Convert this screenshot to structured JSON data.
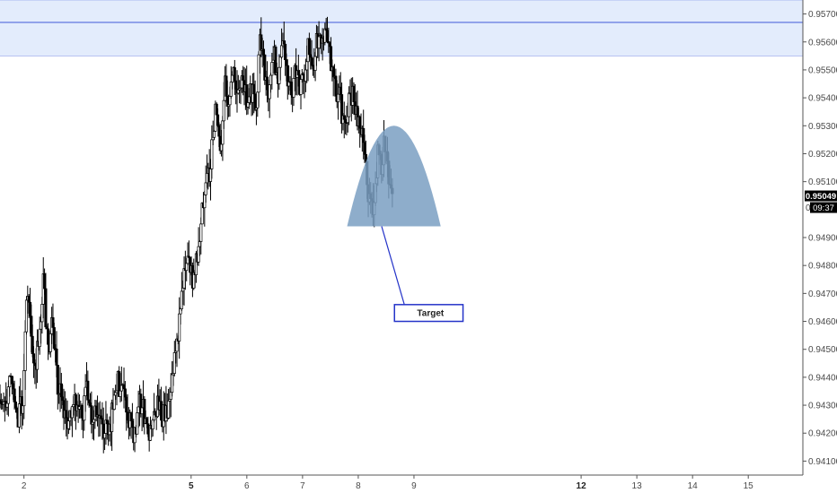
{
  "chart_data": {
    "type": "candlestick",
    "y_range": [
      0.9405,
      0.9575
    ],
    "x_range": [
      1.57,
      15.98
    ],
    "y_ticks": [
      {
        "value": 0.957,
        "label": "0.95700"
      },
      {
        "value": 0.956,
        "label": "0.95600"
      },
      {
        "value": 0.955,
        "label": "0.95500"
      },
      {
        "value": 0.954,
        "label": "0.95400"
      },
      {
        "value": 0.953,
        "label": "0.95300"
      },
      {
        "value": 0.952,
        "label": "0.95200"
      },
      {
        "value": 0.951,
        "label": "0.95100"
      },
      {
        "value": 0.949,
        "label": "0.94900"
      },
      {
        "value": 0.948,
        "label": "0.94800"
      },
      {
        "value": 0.947,
        "label": "0.94700"
      },
      {
        "value": 0.946,
        "label": "0.94600"
      },
      {
        "value": 0.945,
        "label": "0.94500"
      },
      {
        "value": 0.944,
        "label": "0.94400"
      },
      {
        "value": 0.943,
        "label": "0.94300"
      },
      {
        "value": 0.942,
        "label": "0.94200"
      },
      {
        "value": 0.941,
        "label": "0.94100"
      }
    ],
    "x_ticks": [
      {
        "value": 2,
        "label": "2",
        "bold": false
      },
      {
        "value": 5,
        "label": "5",
        "bold": true
      },
      {
        "value": 6,
        "label": "6",
        "bold": false
      },
      {
        "value": 7,
        "label": "7",
        "bold": false
      },
      {
        "value": 8,
        "label": "8",
        "bold": false
      },
      {
        "value": 9,
        "label": "9",
        "bold": false
      },
      {
        "value": 12,
        "label": "12",
        "bold": true
      },
      {
        "value": 13,
        "label": "13",
        "bold": false
      },
      {
        "value": 14,
        "label": "14",
        "bold": false
      },
      {
        "value": 15,
        "label": "15",
        "bold": false
      }
    ],
    "price_path": [
      [
        1.57,
        0.9432
      ],
      [
        1.68,
        0.9428
      ],
      [
        1.78,
        0.9438
      ],
      [
        1.9,
        0.9424
      ],
      [
        2.0,
        0.9432
      ],
      [
        2.07,
        0.947
      ],
      [
        2.14,
        0.946
      ],
      [
        2.22,
        0.9442
      ],
      [
        2.3,
        0.9455
      ],
      [
        2.37,
        0.9475
      ],
      [
        2.45,
        0.9448
      ],
      [
        2.53,
        0.946
      ],
      [
        2.62,
        0.9438
      ],
      [
        2.72,
        0.943
      ],
      [
        2.82,
        0.9422
      ],
      [
        2.95,
        0.9432
      ],
      [
        3.05,
        0.9425
      ],
      [
        3.15,
        0.9436
      ],
      [
        3.25,
        0.9425
      ],
      [
        3.35,
        0.943
      ],
      [
        3.45,
        0.942
      ],
      [
        3.58,
        0.9424
      ],
      [
        3.7,
        0.9438
      ],
      [
        3.8,
        0.9433
      ],
      [
        3.9,
        0.9426
      ],
      [
        4.0,
        0.942
      ],
      [
        4.1,
        0.9432
      ],
      [
        4.2,
        0.9427
      ],
      [
        4.3,
        0.9418
      ],
      [
        4.42,
        0.943
      ],
      [
        4.55,
        0.9425
      ],
      [
        4.65,
        0.9436
      ],
      [
        4.75,
        0.9448
      ],
      [
        4.85,
        0.947
      ],
      [
        4.95,
        0.9482
      ],
      [
        5.05,
        0.9475
      ],
      [
        5.15,
        0.9486
      ],
      [
        5.25,
        0.9506
      ],
      [
        5.35,
        0.9512
      ],
      [
        5.45,
        0.9535
      ],
      [
        5.55,
        0.952
      ],
      [
        5.62,
        0.9545
      ],
      [
        5.7,
        0.9538
      ],
      [
        5.78,
        0.955
      ],
      [
        5.86,
        0.954
      ],
      [
        5.94,
        0.9548
      ],
      [
        6.02,
        0.9538
      ],
      [
        6.1,
        0.9543
      ],
      [
        6.18,
        0.9536
      ],
      [
        6.26,
        0.956
      ],
      [
        6.34,
        0.955
      ],
      [
        6.42,
        0.954
      ],
      [
        6.5,
        0.9556
      ],
      [
        6.58,
        0.9545
      ],
      [
        6.66,
        0.9562
      ],
      [
        6.74,
        0.9548
      ],
      [
        6.82,
        0.954
      ],
      [
        6.9,
        0.9552
      ],
      [
        6.98,
        0.9542
      ],
      [
        7.06,
        0.955
      ],
      [
        7.14,
        0.956
      ],
      [
        7.22,
        0.9552
      ],
      [
        7.3,
        0.9562
      ],
      [
        7.38,
        0.956
      ],
      [
        7.46,
        0.9565
      ],
      [
        7.52,
        0.9555
      ],
      [
        7.6,
        0.9545
      ],
      [
        7.68,
        0.954
      ],
      [
        7.76,
        0.953
      ],
      [
        7.84,
        0.9538
      ],
      [
        7.92,
        0.9542
      ],
      [
        8.0,
        0.9532
      ],
      [
        8.08,
        0.9528
      ],
      [
        8.14,
        0.952
      ],
      [
        8.2,
        0.9505
      ],
      [
        8.26,
        0.9498
      ],
      [
        8.32,
        0.9508
      ],
      [
        8.38,
        0.952
      ],
      [
        8.44,
        0.9515
      ],
      [
        8.5,
        0.9525
      ],
      [
        8.56,
        0.9512
      ],
      [
        8.62,
        0.9505
      ]
    ],
    "resistance_zone": {
      "from": 0.9555,
      "to": 0.9577
    },
    "resistance_line": 0.9567,
    "current_price": {
      "value": 0.95049,
      "label": "0.95049",
      "countdown": "09:37"
    },
    "price_label_zero": "0",
    "pattern": {
      "shape": "arc",
      "x_start": 7.8,
      "x_end": 9.48,
      "base": 0.9494,
      "peak": 0.953
    },
    "arrow": {
      "from": [
        8.42,
        0.9494
      ],
      "to": [
        8.9,
        0.9461
      ]
    },
    "target": {
      "label": "Target",
      "x_start": 8.65,
      "x_end": 9.88,
      "y_top": 0.9466,
      "y_bottom": 0.946
    },
    "colors": {
      "zone_fill": "#e3ecfc",
      "zone_line": "#3f59d8",
      "pattern_fill": "#7a9fc2",
      "arrow": "#2433c8",
      "candles": "#000000",
      "axis": "#555555",
      "label_bg": "#000000",
      "label_text": "#ffffff"
    }
  }
}
